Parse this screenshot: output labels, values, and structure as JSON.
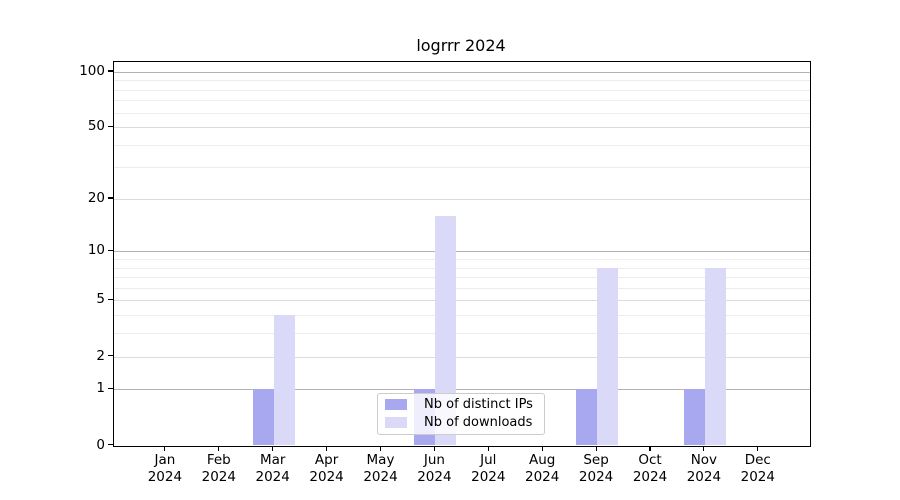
{
  "title": "logrrr 2024",
  "chart_data": {
    "type": "bar",
    "title": "logrrr 2024",
    "months": [
      "Jan",
      "Feb",
      "Mar",
      "Apr",
      "May",
      "Jun",
      "Jul",
      "Aug",
      "Sep",
      "Oct",
      "Nov",
      "Dec"
    ],
    "year_label": "2024",
    "series": [
      {
        "name": "Nb of distinct IPs",
        "color": "#a8a8f1",
        "values": [
          0,
          0,
          1,
          0,
          0,
          1,
          0,
          0,
          1,
          0,
          1,
          0
        ]
      },
      {
        "name": "Nb of downloads",
        "color": "#dadaf8",
        "values": [
          0,
          0,
          4,
          0,
          0,
          16,
          0,
          0,
          8,
          0,
          8,
          0
        ]
      }
    ],
    "yscale": "log10(1+x)",
    "ylim": [
      0,
      114
    ],
    "y_major_ticks": [
      0,
      1,
      2,
      5,
      10,
      20,
      50,
      100
    ],
    "y_minor_ticks": [
      3,
      4,
      6,
      7,
      8,
      9,
      30,
      40,
      60,
      70,
      80,
      90
    ],
    "grid": "both",
    "legend_position": "lower center"
  }
}
